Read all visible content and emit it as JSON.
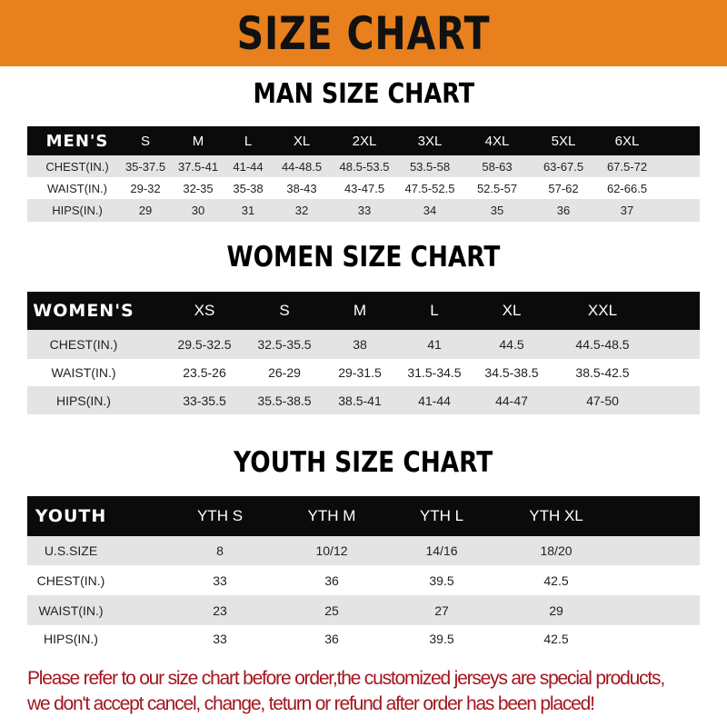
{
  "banner_title": "SIZE CHART",
  "colors": {
    "banner": "#e8801e",
    "header_row": "#0b0b0b",
    "stripe": "#e4e4e4",
    "notice": "#a3161f"
  },
  "men": {
    "title": "MAN SIZE CHART",
    "headers": [
      "MEN'S",
      "S",
      "M",
      "L",
      "XL",
      "2XL",
      "3XL",
      "4XL",
      "5XL",
      "6XL"
    ],
    "rows": [
      [
        "CHEST(IN.)",
        "35-37.5",
        "37.5-41",
        "41-44",
        "44-48.5",
        "48.5-53.5",
        "53.5-58",
        "58-63",
        "63-67.5",
        "67.5-72"
      ],
      [
        "WAIST(IN.)",
        "29-32",
        "32-35",
        "35-38",
        "38-43",
        "43-47.5",
        "47.5-52.5",
        "52.5-57",
        "57-62",
        "62-66.5"
      ],
      [
        "HIPS(IN.)",
        "29",
        "30",
        "31",
        "32",
        "33",
        "34",
        "35",
        "36",
        "37"
      ]
    ]
  },
  "women": {
    "title": "WOMEN SIZE CHART",
    "headers": [
      "WOMEN'S",
      "XS",
      "S",
      "M",
      "L",
      "XL",
      "XXL"
    ],
    "rows": [
      [
        "CHEST(IN.)",
        "29.5-32.5",
        "32.5-35.5",
        "38",
        "41",
        "44.5",
        "44.5-48.5"
      ],
      [
        "WAIST(IN.)",
        "23.5-26",
        "26-29",
        "29-31.5",
        "31.5-34.5",
        "34.5-38.5",
        "38.5-42.5"
      ],
      [
        "HIPS(IN.)",
        "33-35.5",
        "35.5-38.5",
        "38.5-41",
        "41-44",
        "44-47",
        "47-50"
      ]
    ]
  },
  "youth": {
    "title": "YOUTH SIZE CHART",
    "headers": [
      "YOUTH",
      "YTH S",
      "YTH M",
      "YTH L",
      "YTH XL"
    ],
    "rows": [
      [
        "U.S.SIZE",
        "8",
        "10/12",
        "14/16",
        "18/20"
      ],
      [
        "CHEST(IN.)",
        "33",
        "36",
        "39.5",
        "42.5"
      ],
      [
        "WAIST(IN.)",
        "23",
        "25",
        "27",
        "29"
      ],
      [
        "HIPS(IN.)",
        "33",
        "36",
        "39.5",
        "42.5"
      ]
    ]
  },
  "notice": {
    "line1": "Please refer to our size chart before order,the customized jerseys are special products,",
    "line2": "we don't accept cancel, change, teturn or refund after order has been placed!"
  }
}
